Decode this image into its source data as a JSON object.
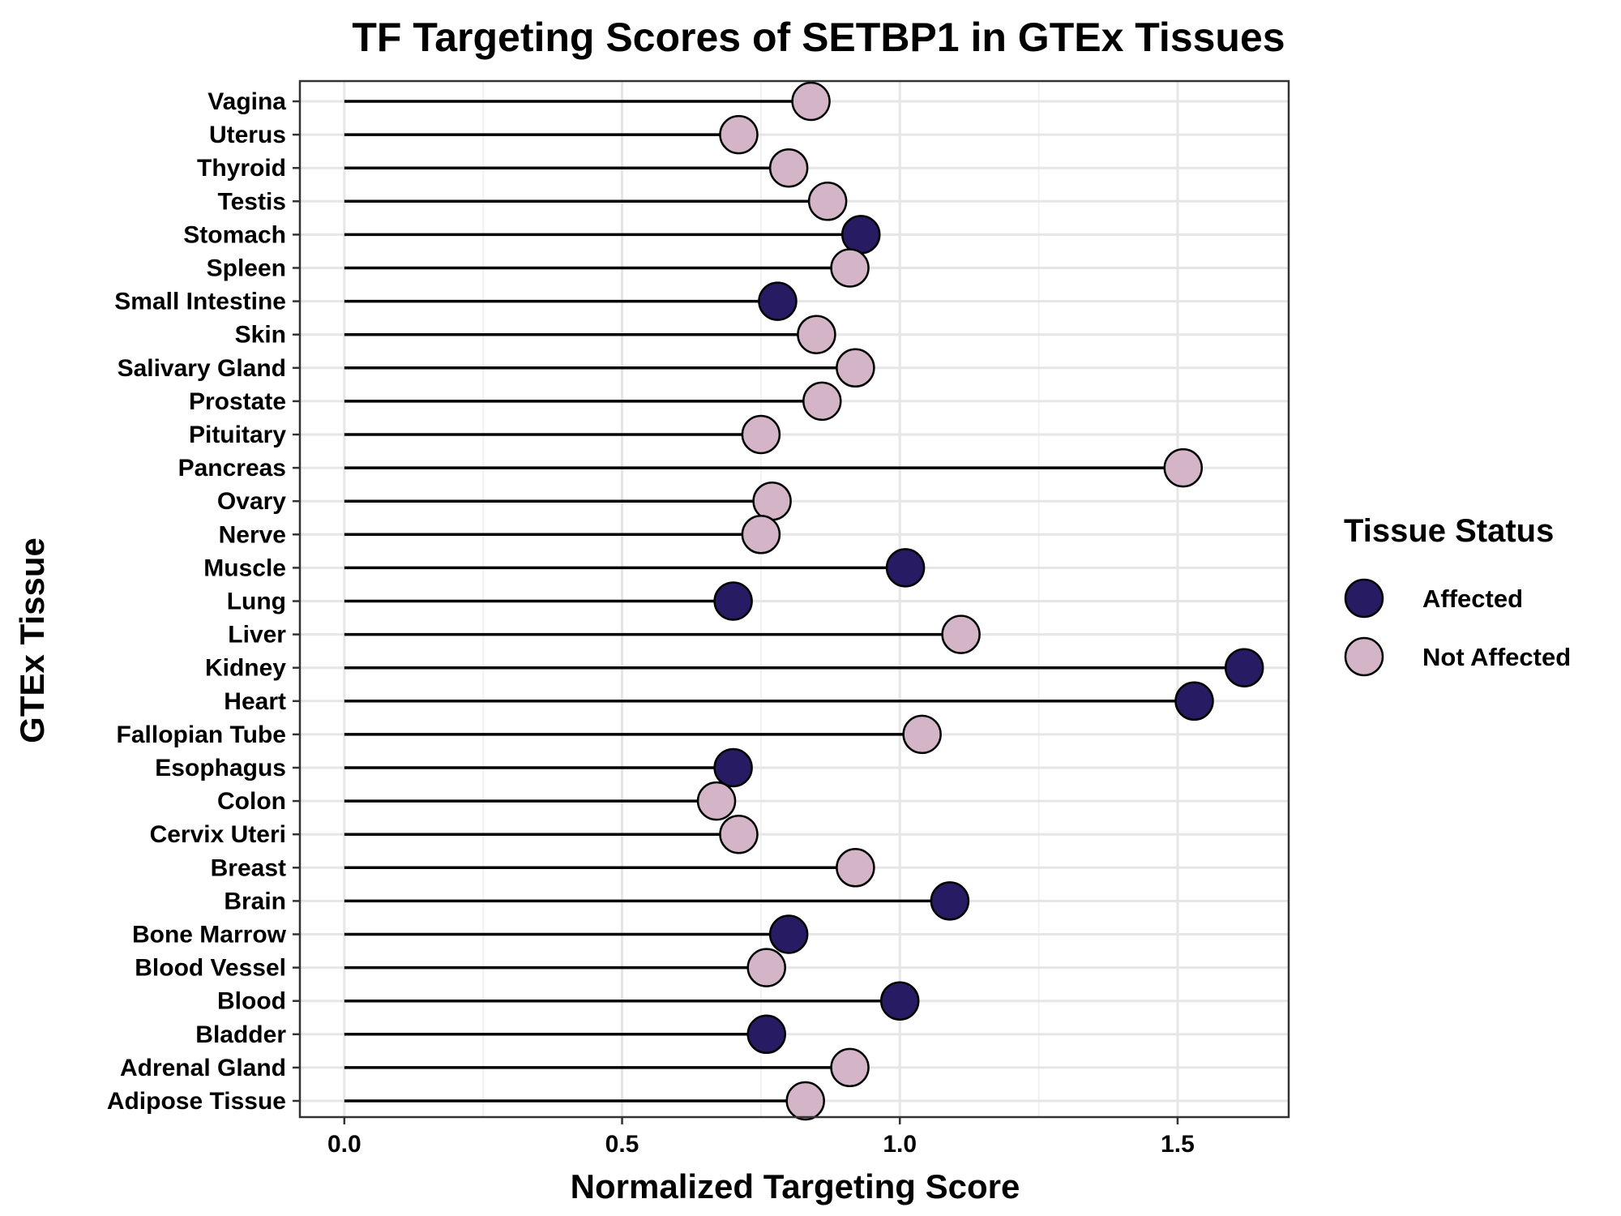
{
  "chart_data": {
    "type": "lollipop",
    "title": "TF Targeting Scores of SETBP1 in GTEx Tissues",
    "xlabel": "Normalized Targeting Score",
    "ylabel": "GTEx Tissue",
    "xlim": [
      -0.08,
      1.7
    ],
    "x_ticks": [
      {
        "value": 0.0,
        "label": "0.0"
      },
      {
        "value": 0.5,
        "label": "0.5"
      },
      {
        "value": 1.0,
        "label": "1.0"
      },
      {
        "value": 1.5,
        "label": "1.5"
      }
    ],
    "grid": true,
    "legend": {
      "title": "Tissue Status",
      "position": "right",
      "entries": [
        {
          "name": "Affected",
          "color": "#271b64"
        },
        {
          "name": "Not Affected",
          "color": "#d4b5c8"
        }
      ]
    },
    "colors": {
      "Affected": "#271b64",
      "Not Affected": "#d4b5c8"
    },
    "categories": [
      "Vagina",
      "Uterus",
      "Thyroid",
      "Testis",
      "Stomach",
      "Spleen",
      "Small Intestine",
      "Skin",
      "Salivary Gland",
      "Prostate",
      "Pituitary",
      "Pancreas",
      "Ovary",
      "Nerve",
      "Muscle",
      "Lung",
      "Liver",
      "Kidney",
      "Heart",
      "Fallopian Tube",
      "Esophagus",
      "Colon",
      "Cervix Uteri",
      "Breast",
      "Brain",
      "Bone Marrow",
      "Blood Vessel",
      "Blood",
      "Bladder",
      "Adrenal Gland",
      "Adipose Tissue"
    ],
    "values": [
      0.84,
      0.71,
      0.8,
      0.87,
      0.93,
      0.91,
      0.78,
      0.85,
      0.92,
      0.86,
      0.75,
      1.51,
      0.77,
      0.75,
      1.01,
      0.7,
      1.11,
      1.62,
      1.53,
      1.04,
      0.7,
      0.67,
      0.71,
      0.92,
      1.09,
      0.8,
      0.76,
      1.0,
      0.76,
      0.91,
      0.83
    ],
    "status": [
      "Not Affected",
      "Not Affected",
      "Not Affected",
      "Not Affected",
      "Affected",
      "Not Affected",
      "Affected",
      "Not Affected",
      "Not Affected",
      "Not Affected",
      "Not Affected",
      "Not Affected",
      "Not Affected",
      "Not Affected",
      "Affected",
      "Affected",
      "Not Affected",
      "Affected",
      "Affected",
      "Not Affected",
      "Affected",
      "Not Affected",
      "Not Affected",
      "Not Affected",
      "Affected",
      "Affected",
      "Not Affected",
      "Affected",
      "Affected",
      "Not Affected",
      "Not Affected"
    ]
  }
}
